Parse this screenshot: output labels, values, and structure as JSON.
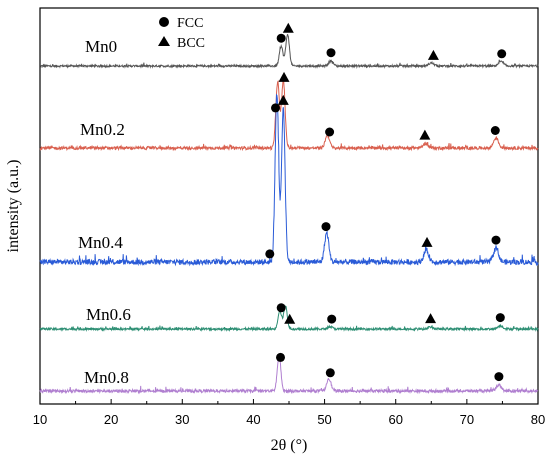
{
  "chart_data": {
    "type": "line",
    "title": "",
    "xlabel": "2θ (°)",
    "ylabel": "intensity (a.u.)",
    "xlim": [
      10,
      80
    ],
    "xticks": [
      10,
      20,
      30,
      40,
      50,
      60,
      70,
      80
    ],
    "legend": [
      {
        "label": "FCC",
        "marker": "circle"
      },
      {
        "label": "BCC",
        "marker": "triangle"
      }
    ],
    "series": [
      {
        "name": "Mn0",
        "color": "#555555",
        "peaks": [
          {
            "x": 43.9,
            "h": 0.45,
            "w": 0.25
          },
          {
            "x": 44.8,
            "h": 0.72,
            "w": 0.25
          },
          {
            "x": 50.9,
            "h": 0.12,
            "w": 0.3
          },
          {
            "x": 65.0,
            "h": 0.07,
            "w": 0.35
          },
          {
            "x": 74.8,
            "h": 0.1,
            "w": 0.35
          }
        ],
        "markers": [
          {
            "x": 43.9,
            "type": "circle"
          },
          {
            "x": 44.9,
            "type": "triangle"
          },
          {
            "x": 50.9,
            "type": "circle"
          },
          {
            "x": 65.3,
            "type": "triangle"
          },
          {
            "x": 74.9,
            "type": "circle"
          }
        ]
      },
      {
        "name": "Mn0.2",
        "color": "#d9604f",
        "peaks": [
          {
            "x": 43.4,
            "h": 1.0,
            "w": 0.25
          },
          {
            "x": 44.2,
            "h": 1.02,
            "w": 0.25
          },
          {
            "x": 50.4,
            "h": 0.2,
            "w": 0.3
          },
          {
            "x": 64.2,
            "h": 0.07,
            "w": 0.35
          },
          {
            "x": 74.1,
            "h": 0.15,
            "w": 0.35
          }
        ],
        "markers": [
          {
            "x": 43.1,
            "type": "circle"
          },
          {
            "x": 44.3,
            "type": "triangle"
          },
          {
            "x": 50.7,
            "type": "circle"
          },
          {
            "x": 64.1,
            "type": "triangle"
          },
          {
            "x": 74.0,
            "type": "circle"
          }
        ]
      },
      {
        "name": "Mn0.4",
        "color": "#2a5bd7",
        "peaks": [
          {
            "x": 43.3,
            "h": 1.45,
            "w": 0.25
          },
          {
            "x": 44.2,
            "h": 1.32,
            "w": 0.25
          },
          {
            "x": 50.3,
            "h": 0.25,
            "w": 0.3
          },
          {
            "x": 64.3,
            "h": 0.1,
            "w": 0.35
          },
          {
            "x": 74.1,
            "h": 0.12,
            "w": 0.35
          }
        ],
        "markers": [
          {
            "x": 42.3,
            "type": "circle"
          },
          {
            "x": 44.2,
            "type": "triangle"
          },
          {
            "x": 50.2,
            "type": "circle"
          },
          {
            "x": 64.4,
            "type": "triangle"
          },
          {
            "x": 74.1,
            "type": "circle"
          }
        ]
      },
      {
        "name": "Mn0.6",
        "color": "#2e8f74",
        "peaks": [
          {
            "x": 43.7,
            "h": 0.38,
            "w": 0.25
          },
          {
            "x": 44.5,
            "h": 0.48,
            "w": 0.25
          },
          {
            "x": 50.8,
            "h": 0.05,
            "w": 0.3
          },
          {
            "x": 64.9,
            "h": 0.04,
            "w": 0.35
          },
          {
            "x": 74.7,
            "h": 0.07,
            "w": 0.35
          }
        ],
        "markers": [
          {
            "x": 43.9,
            "type": "circle"
          },
          {
            "x": 45.1,
            "type": "triangle"
          },
          {
            "x": 51.0,
            "type": "circle"
          },
          {
            "x": 64.9,
            "type": "triangle"
          },
          {
            "x": 74.7,
            "type": "circle"
          }
        ]
      },
      {
        "name": "Mn0.8",
        "color": "#b07fd0",
        "peaks": [
          {
            "x": 43.6,
            "h": 0.55,
            "w": 0.25
          },
          {
            "x": 50.6,
            "h": 0.2,
            "w": 0.3
          },
          {
            "x": 74.5,
            "h": 0.1,
            "w": 0.35
          }
        ],
        "markers": [
          {
            "x": 43.8,
            "type": "circle"
          },
          {
            "x": 50.8,
            "type": "circle"
          },
          {
            "x": 74.5,
            "type": "circle"
          }
        ]
      }
    ]
  }
}
